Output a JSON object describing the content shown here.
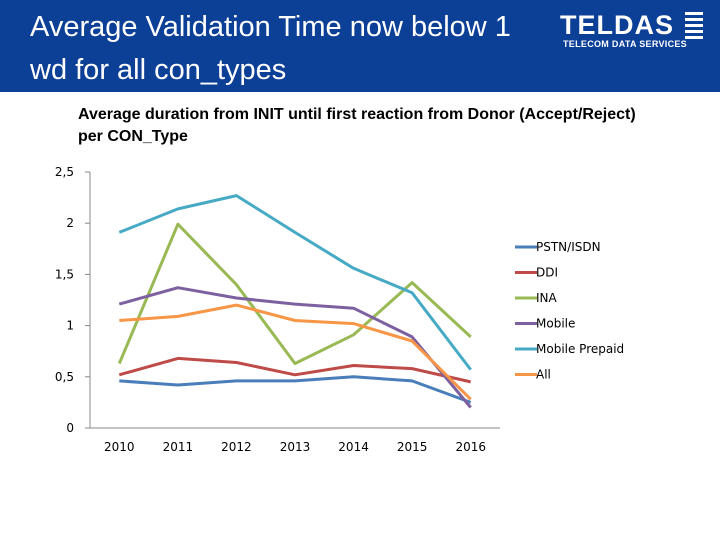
{
  "slide": {
    "title": "Average Validation Time now below 1 wd for all con_types",
    "header_color": "#0c3f96"
  },
  "logo": {
    "word": "TELDAS",
    "subtitle": "TELECOM DATA SERVICES"
  },
  "chart_data": {
    "type": "line",
    "title": "Average duration from INIT until first reaction from Donor (Accept/Reject) per CON_Type",
    "xlabel": "",
    "ylabel": "",
    "categories": [
      "2010",
      "2011",
      "2012",
      "2013",
      "2014",
      "2015",
      "2016"
    ],
    "yticks": [
      "0",
      "0,5",
      "1",
      "1,5",
      "2",
      "2,5"
    ],
    "ylim": [
      0,
      2.5
    ],
    "grid": false,
    "legend_position": "right",
    "series": [
      {
        "name": "PSTN/ISDN",
        "color": "#4a7ebb",
        "values": [
          0.46,
          0.42,
          0.46,
          0.46,
          0.5,
          0.46,
          0.25
        ]
      },
      {
        "name": "DDI",
        "color": "#be4b48",
        "values": [
          0.52,
          0.68,
          0.64,
          0.52,
          0.61,
          0.58,
          0.45
        ]
      },
      {
        "name": "INA",
        "color": "#98b954",
        "values": [
          0.63,
          1.99,
          1.4,
          0.63,
          0.91,
          1.42,
          0.89
        ]
      },
      {
        "name": "Mobile",
        "color": "#7d60a0",
        "values": [
          1.21,
          1.37,
          1.27,
          1.21,
          1.17,
          0.89,
          0.2
        ]
      },
      {
        "name": "Mobile Prepaid",
        "color": "#46aac5",
        "values": [
          1.91,
          2.14,
          2.27,
          1.91,
          1.56,
          1.32,
          0.57
        ]
      },
      {
        "name": "All",
        "color": "#f79646",
        "values": [
          1.05,
          1.09,
          1.2,
          1.05,
          1.02,
          0.85,
          0.28
        ]
      }
    ]
  }
}
